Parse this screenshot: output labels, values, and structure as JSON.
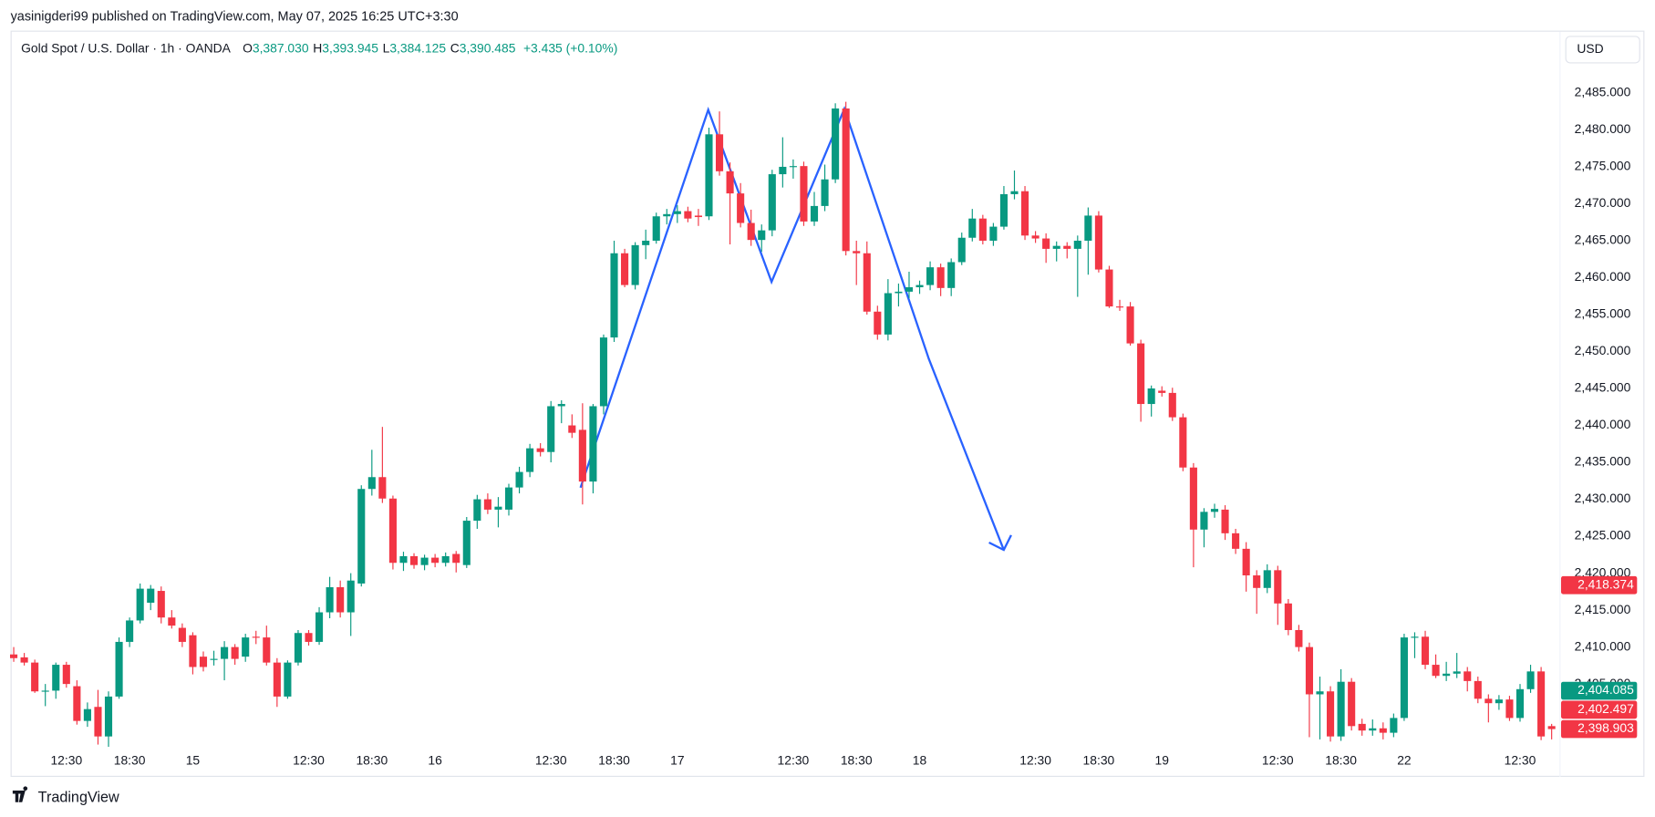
{
  "header": {
    "publisher": "yasinigderi99 published on TradingView.com, May 07, 2025 16:25 UTC+3:30",
    "symbol": "Gold Spot / U.S. Dollar · 1h · OANDA",
    "ohlc": [
      {
        "key": "O",
        "value": "3,387.030"
      },
      {
        "key": "H",
        "value": "3,393.945"
      },
      {
        "key": "L",
        "value": "3,384.125"
      },
      {
        "key": "C",
        "value": "3,390.485"
      }
    ],
    "change": "+3.435 (+0.10%)",
    "currency": "USD"
  },
  "footer": {
    "brand": "TradingView"
  },
  "chart_data": {
    "type": "candlestick",
    "up_color": "#089981",
    "down_color": "#f23645",
    "grid": false,
    "ylim": [
      2392.43,
      2493.29
    ],
    "yticks": [
      {
        "value": 2405,
        "label": "2,405.000"
      },
      {
        "value": 2410,
        "label": "2,410.000"
      },
      {
        "value": 2415,
        "label": "2,415.000"
      },
      {
        "value": 2420,
        "label": "2,420.000"
      },
      {
        "value": 2425,
        "label": "2,425.000"
      },
      {
        "value": 2430,
        "label": "2,430.000"
      },
      {
        "value": 2435,
        "label": "2,435.000"
      },
      {
        "value": 2440,
        "label": "2,440.000"
      },
      {
        "value": 2445,
        "label": "2,445.000"
      },
      {
        "value": 2450,
        "label": "2,450.000"
      },
      {
        "value": 2455,
        "label": "2,455.000"
      },
      {
        "value": 2460,
        "label": "2,460.000"
      },
      {
        "value": 2465,
        "label": "2,465.000"
      },
      {
        "value": 2470,
        "label": "2,470.000"
      },
      {
        "value": 2475,
        "label": "2,475.000"
      },
      {
        "value": 2480,
        "label": "2,480.000"
      },
      {
        "value": 2485,
        "label": "2,485.000"
      }
    ],
    "price_tags": [
      {
        "value": 2418.374,
        "label": "2,418.374",
        "color": "#f23645"
      },
      {
        "value": 2404.085,
        "label": "2,404.085",
        "color": "#089981"
      },
      {
        "value": 2402.497,
        "label": "2,402.497",
        "color": "#f23645"
      },
      {
        "value": 2398.903,
        "label": "2,398.903",
        "color": "#f23645"
      }
    ],
    "categories": [
      null,
      null,
      null,
      null,
      null,
      "12:30",
      null,
      null,
      null,
      null,
      null,
      "18:30",
      null,
      null,
      null,
      null,
      null,
      "15",
      null,
      null,
      null,
      null,
      null,
      null,
      null,
      null,
      null,
      null,
      "12:30",
      null,
      null,
      null,
      null,
      null,
      "18:30",
      null,
      null,
      null,
      null,
      null,
      "16",
      null,
      null,
      null,
      null,
      null,
      null,
      null,
      null,
      null,
      null,
      "12:30",
      null,
      null,
      null,
      null,
      null,
      "18:30",
      null,
      null,
      null,
      null,
      null,
      "17",
      null,
      null,
      null,
      null,
      null,
      null,
      null,
      null,
      null,
      null,
      "12:30",
      null,
      null,
      null,
      null,
      null,
      "18:30",
      null,
      null,
      null,
      null,
      null,
      "18",
      null,
      null,
      null,
      null,
      null,
      null,
      null,
      null,
      null,
      null,
      "12:30",
      null,
      null,
      null,
      null,
      null,
      "18:30",
      null,
      null,
      null,
      null,
      null,
      "19",
      null,
      null,
      null,
      null,
      null,
      null,
      null,
      null,
      null,
      null,
      "12:30",
      null,
      null,
      null,
      null,
      null,
      "18:30",
      null,
      null,
      null,
      null,
      null,
      "22",
      null,
      null,
      null,
      null,
      null,
      null,
      null,
      null,
      null,
      null,
      "12:30",
      null,
      null,
      null
    ],
    "candles": [
      [
        2409,
        2410,
        2408,
        2408.5
      ],
      [
        2408.6,
        2409.2,
        2407.5,
        2407.9
      ],
      [
        2407.9,
        2408.3,
        2403.8,
        2404
      ],
      [
        2404,
        2405,
        2402,
        2404.1
      ],
      [
        2404.1,
        2407.9,
        2403,
        2407.6
      ],
      [
        2407.6,
        2408,
        2404.5,
        2405
      ],
      [
        2404.7,
        2405.5,
        2399.5,
        2400
      ],
      [
        2400,
        2402.5,
        2399.2,
        2401.6
      ],
      [
        2401.9,
        2404.2,
        2396.8,
        2397.9
      ],
      [
        2397.9,
        2404,
        2396.5,
        2403.3
      ],
      [
        2403.3,
        2411.3,
        2403,
        2410.7
      ],
      [
        2410.7,
        2414,
        2410,
        2413.6
      ],
      [
        2413.6,
        2418.6,
        2413.2,
        2417.9
      ],
      [
        2416,
        2418.4,
        2415,
        2417.9
      ],
      [
        2417.6,
        2418.2,
        2413.2,
        2414
      ],
      [
        2414,
        2415,
        2412.5,
        2412.9
      ],
      [
        2412.6,
        2413.2,
        2410,
        2410.7
      ],
      [
        2411.6,
        2412,
        2406.3,
        2407.3
      ],
      [
        2408.7,
        2409.4,
        2406.7,
        2407.3
      ],
      [
        2408.3,
        2409.5,
        2407.5,
        2408.4
      ],
      [
        2408.4,
        2410.8,
        2405.5,
        2410
      ],
      [
        2410,
        2410.4,
        2407.6,
        2408.4
      ],
      [
        2408.7,
        2411.8,
        2408,
        2411.3
      ],
      [
        2411.4,
        2412.2,
        2410.4,
        2411.3
      ],
      [
        2411.3,
        2412.9,
        2407.5,
        2407.9
      ],
      [
        2407.9,
        2408.5,
        2401.9,
        2403.3
      ],
      [
        2403.3,
        2408.2,
        2403,
        2407.9
      ],
      [
        2407.9,
        2412.3,
        2407.5,
        2411.9
      ],
      [
        2411.9,
        2412.3,
        2410.2,
        2410.7
      ],
      [
        2410.7,
        2415.4,
        2410.3,
        2414.7
      ],
      [
        2414.7,
        2419.5,
        2413.9,
        2418.1
      ],
      [
        2418.1,
        2419,
        2414,
        2414.7
      ],
      [
        2414.7,
        2420,
        2411.5,
        2419
      ],
      [
        2418.6,
        2431.9,
        2418.2,
        2431.4
      ],
      [
        2431.4,
        2436.7,
        2430.5,
        2433
      ],
      [
        2433,
        2439.8,
        2429.5,
        2430.1
      ],
      [
        2430.1,
        2430.5,
        2420.5,
        2421.4
      ],
      [
        2421.4,
        2422.9,
        2420.3,
        2422.3
      ],
      [
        2422.3,
        2422.7,
        2420.6,
        2421.1
      ],
      [
        2421.1,
        2422.5,
        2420.4,
        2422.1
      ],
      [
        2422.1,
        2422.6,
        2420.8,
        2421.4
      ],
      [
        2421.4,
        2422.8,
        2420.9,
        2422.3
      ],
      [
        2422.6,
        2423,
        2420.1,
        2421.4
      ],
      [
        2421.1,
        2427.6,
        2420.7,
        2427.1
      ],
      [
        2427.1,
        2430.6,
        2426,
        2430
      ],
      [
        2430,
        2430.8,
        2428,
        2428.6
      ],
      [
        2428.6,
        2430.3,
        2426.2,
        2429
      ],
      [
        2428.6,
        2432.1,
        2427.8,
        2431.6
      ],
      [
        2431.6,
        2434.4,
        2430.8,
        2433.7
      ],
      [
        2433.7,
        2437.5,
        2433,
        2436.9
      ],
      [
        2436.9,
        2437.6,
        2435.8,
        2436.4
      ],
      [
        2436.4,
        2443.3,
        2435,
        2442.6
      ],
      [
        2442.6,
        2443.4,
        2440.3,
        2442.9
      ],
      [
        2440,
        2441.5,
        2438.3,
        2439
      ],
      [
        2439.4,
        2443,
        2429.3,
        2432.4
      ],
      [
        2432.4,
        2442.9,
        2430.8,
        2442.6
      ],
      [
        2442.6,
        2452.3,
        2441.5,
        2451.9
      ],
      [
        2451.9,
        2465,
        2451.3,
        2463.3
      ],
      [
        2463.3,
        2463.9,
        2458.7,
        2459
      ],
      [
        2459,
        2464.8,
        2458.4,
        2464.4
      ],
      [
        2464.4,
        2466.5,
        2462.5,
        2465
      ],
      [
        2465,
        2468.8,
        2464.6,
        2468.3
      ],
      [
        2468.3,
        2469.3,
        2467.2,
        2468.6
      ],
      [
        2468.6,
        2469.8,
        2467.4,
        2469
      ],
      [
        2469,
        2469.6,
        2467.5,
        2468
      ],
      [
        2468.4,
        2469.3,
        2467,
        2468.2
      ],
      [
        2468.3,
        2480.3,
        2467.8,
        2479.4
      ],
      [
        2479.4,
        2482.5,
        2473.8,
        2474.4
      ],
      [
        2474.4,
        2475.6,
        2464.5,
        2471.4
      ],
      [
        2471.4,
        2472.8,
        2466.8,
        2467.4
      ],
      [
        2467.4,
        2469.2,
        2464.3,
        2465.1
      ],
      [
        2465.1,
        2467.2,
        2463.5,
        2466.4
      ],
      [
        2466.4,
        2474.6,
        2465.6,
        2474
      ],
      [
        2474,
        2479,
        2472.2,
        2475
      ],
      [
        2475,
        2476,
        2473.4,
        2475.1
      ],
      [
        2475.1,
        2475.7,
        2467,
        2467.6
      ],
      [
        2467.6,
        2471.6,
        2467,
        2469.7
      ],
      [
        2469.7,
        2475.3,
        2469,
        2473.3
      ],
      [
        2473.3,
        2483.6,
        2472.8,
        2482.9
      ],
      [
        2482.9,
        2483.8,
        2463,
        2463.6
      ],
      [
        2463.6,
        2465,
        2459,
        2463.3
      ],
      [
        2463.3,
        2464.9,
        2455,
        2455.4
      ],
      [
        2455.4,
        2456.2,
        2451.6,
        2452.3
      ],
      [
        2452.3,
        2459.8,
        2451.5,
        2457.9
      ],
      [
        2457.9,
        2459.2,
        2456.1,
        2458.1
      ],
      [
        2458.1,
        2460.8,
        2457.2,
        2458.7
      ],
      [
        2458.7,
        2459.6,
        2457.8,
        2459
      ],
      [
        2459,
        2462.2,
        2458.3,
        2461.4
      ],
      [
        2461.4,
        2461.9,
        2457.5,
        2458.6
      ],
      [
        2458.6,
        2462.6,
        2457.5,
        2462.1
      ],
      [
        2462.1,
        2466.1,
        2461.7,
        2465.4
      ],
      [
        2465.4,
        2469.3,
        2464.9,
        2468
      ],
      [
        2468,
        2468.5,
        2464.5,
        2465
      ],
      [
        2465,
        2467.4,
        2464.3,
        2466.9
      ],
      [
        2466.9,
        2472.4,
        2466.5,
        2471.3
      ],
      [
        2471.3,
        2474.5,
        2470.6,
        2471.7
      ],
      [
        2471.7,
        2472.4,
        2465.1,
        2465.7
      ],
      [
        2465.7,
        2466.3,
        2464.7,
        2465.3
      ],
      [
        2465.3,
        2466,
        2462,
        2463.9
      ],
      [
        2463.9,
        2464.9,
        2462.2,
        2464.3
      ],
      [
        2464.3,
        2464.8,
        2462.6,
        2463.9
      ],
      [
        2463.9,
        2465.7,
        2457.4,
        2465
      ],
      [
        2465,
        2469.5,
        2460.4,
        2468.4
      ],
      [
        2468.4,
        2469,
        2460.7,
        2461.1
      ],
      [
        2461.1,
        2461.6,
        2455.9,
        2456.1
      ],
      [
        2456.1,
        2457,
        2455.5,
        2456
      ],
      [
        2456.1,
        2456.7,
        2450.8,
        2451.1
      ],
      [
        2451.1,
        2451.6,
        2440.5,
        2442.9
      ],
      [
        2442.9,
        2445.4,
        2441.2,
        2445
      ],
      [
        2444.7,
        2445.3,
        2443.9,
        2444.4
      ],
      [
        2444.4,
        2445.1,
        2440.6,
        2441.1
      ],
      [
        2441.1,
        2441.6,
        2433.8,
        2434.3
      ],
      [
        2434.3,
        2434.9,
        2420.8,
        2425.9
      ],
      [
        2425.9,
        2428.8,
        2423.5,
        2428.3
      ],
      [
        2428.3,
        2429.4,
        2427.5,
        2428.7
      ],
      [
        2428.6,
        2429.2,
        2424.5,
        2425.4
      ],
      [
        2425.4,
        2426,
        2422.6,
        2423.3
      ],
      [
        2423.3,
        2424.2,
        2417.5,
        2419.7
      ],
      [
        2419.7,
        2420.4,
        2414.5,
        2418
      ],
      [
        2418,
        2421.2,
        2417.3,
        2420.4
      ],
      [
        2420.4,
        2421,
        2413,
        2415.9
      ],
      [
        2415.9,
        2416.5,
        2411.6,
        2412.3
      ],
      [
        2412.3,
        2413,
        2409.4,
        2410
      ],
      [
        2410,
        2410.6,
        2397.8,
        2403.6
      ],
      [
        2403.6,
        2406,
        2397.5,
        2404
      ],
      [
        2404,
        2404.7,
        2397.2,
        2397.9
      ],
      [
        2397.9,
        2407,
        2397.3,
        2405.3
      ],
      [
        2405.3,
        2405.8,
        2398.7,
        2399.3
      ],
      [
        2399.6,
        2400.3,
        2398,
        2398.7
      ],
      [
        2398.7,
        2400.2,
        2398,
        2399
      ],
      [
        2399,
        2399.8,
        2397.5,
        2398.4
      ],
      [
        2398.4,
        2401,
        2397.8,
        2400.4
      ],
      [
        2400.4,
        2411.8,
        2400,
        2411.3
      ],
      [
        2411.3,
        2412,
        2408.5,
        2411.4
      ],
      [
        2411.4,
        2412.2,
        2407,
        2407.6
      ],
      [
        2407.6,
        2409,
        2405.8,
        2406.1
      ],
      [
        2406.1,
        2408,
        2405.4,
        2406.4
      ],
      [
        2406.4,
        2409.2,
        2405.8,
        2406.7
      ],
      [
        2406.7,
        2407.3,
        2404,
        2405.4
      ],
      [
        2405.4,
        2406,
        2402.4,
        2403
      ],
      [
        2403,
        2403.6,
        2399.8,
        2402.4
      ],
      [
        2402.4,
        2403.5,
        2401.5,
        2402.9
      ],
      [
        2402.9,
        2403.4,
        2400,
        2400.4
      ],
      [
        2400.4,
        2405,
        2399.9,
        2404.3
      ],
      [
        2404.3,
        2407.6,
        2403.8,
        2406.7
      ],
      [
        2406.7,
        2407.3,
        2397.4,
        2397.9
      ],
      [
        2399.3,
        2399.6,
        2397.5,
        2398.9
      ]
    ]
  }
}
